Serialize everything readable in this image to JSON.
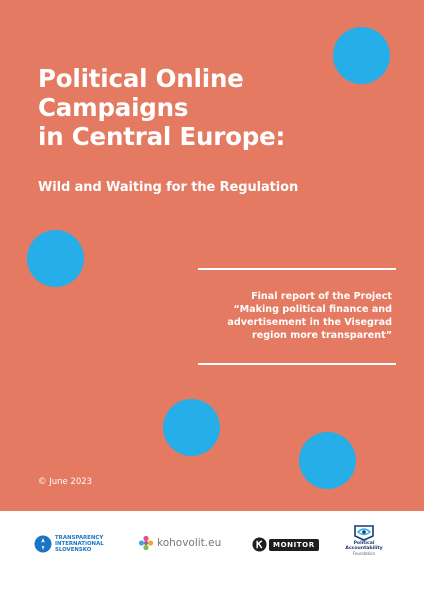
{
  "cover": {
    "title_lines": [
      "Political Online",
      "Campaigns",
      "in Central Europe:"
    ],
    "subtitle": "Wild and Waiting for the Regulation",
    "report_lines": [
      "Final report of the Project",
      "“Making political finance and",
      "advertisement in the Visegrad",
      "region more transparent”"
    ],
    "date": "© June 2023"
  },
  "colors": {
    "background": "#e47a62",
    "dots": "#25aee8",
    "text": "#ffffff"
  },
  "logos": {
    "transparency_international": {
      "icon": "ti-globe-icon",
      "lines": [
        "TRANSPARENCY",
        "INTERNATIONAL",
        "SLOVENSKO"
      ]
    },
    "kohovolit": {
      "icon": "kohovolit-flower-icon",
      "text": "kohovolit.eu"
    },
    "k_monitor": {
      "icon": "k-circle-icon",
      "text": "MONITOR"
    },
    "political_accountability": {
      "icon": "pa-eye-icon",
      "lines": [
        "Political",
        "Accountability"
      ],
      "sub": "Foundation"
    }
  }
}
